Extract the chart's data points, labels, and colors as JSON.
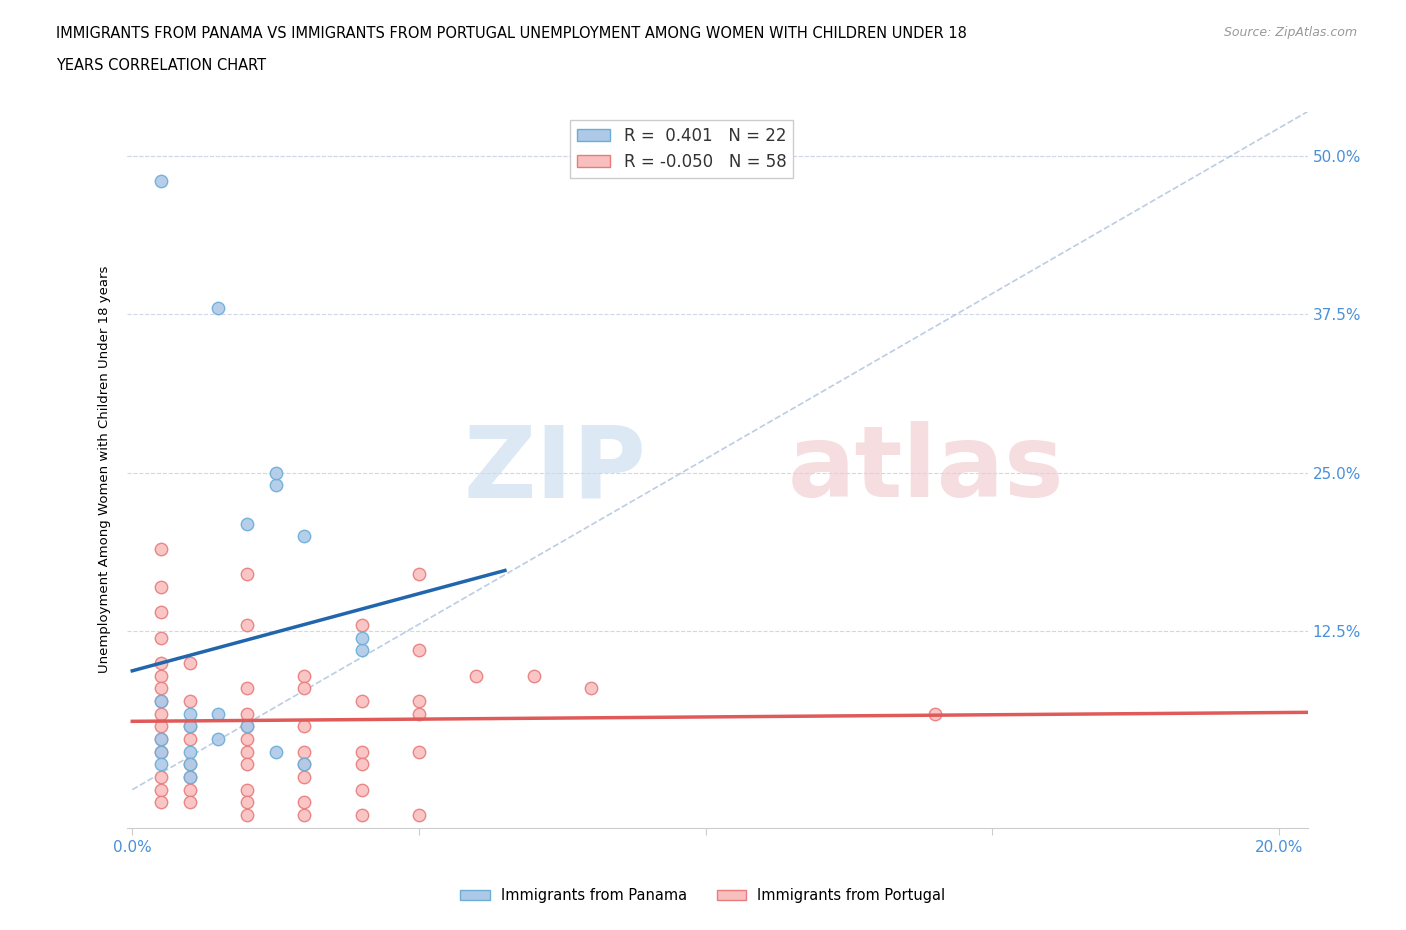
{
  "title_line1": "IMMIGRANTS FROM PANAMA VS IMMIGRANTS FROM PORTUGAL UNEMPLOYMENT AMONG WOMEN WITH CHILDREN UNDER 18",
  "title_line2": "YEARS CORRELATION CHART",
  "source": "Source: ZipAtlas.com",
  "ylabel": "Unemployment Among Women with Children Under 18 years",
  "xlim": [
    -0.001,
    0.205
  ],
  "ylim": [
    -0.03,
    0.535
  ],
  "xticks": [
    0.0,
    0.05,
    0.1,
    0.15,
    0.2
  ],
  "xticklabels": [
    "0.0%",
    "",
    "",
    "",
    "20.0%"
  ],
  "ytick_right_vals": [
    0.0,
    0.125,
    0.25,
    0.375,
    0.5
  ],
  "ytick_right_labels": [
    "",
    "12.5%",
    "25.0%",
    "37.5%",
    "50.0%"
  ],
  "panama_color": "#aec9e8",
  "panama_edge_color": "#6aaed6",
  "portugal_color": "#f9bfbf",
  "portugal_edge_color": "#e87c7c",
  "panama_line_color": "#2166ac",
  "portugal_line_color": "#e05a5a",
  "dash_line_color": "#a0b8d8",
  "grid_color": "#d0d8e8",
  "watermark_zip_color": "#dde8f5",
  "watermark_atlas_color": "#f5dde0",
  "panama_R": 0.401,
  "panama_N": 22,
  "portugal_R": -0.05,
  "portugal_N": 58,
  "panama_scatter": [
    [
      0.005,
      0.48
    ],
    [
      0.015,
      0.38
    ],
    [
      0.02,
      0.21
    ],
    [
      0.025,
      0.24
    ],
    [
      0.025,
      0.25
    ],
    [
      0.03,
      0.2
    ],
    [
      0.04,
      0.11
    ],
    [
      0.04,
      0.12
    ],
    [
      0.005,
      0.07
    ],
    [
      0.01,
      0.06
    ],
    [
      0.01,
      0.05
    ],
    [
      0.005,
      0.04
    ],
    [
      0.005,
      0.03
    ],
    [
      0.005,
      0.02
    ],
    [
      0.01,
      0.03
    ],
    [
      0.01,
      0.02
    ],
    [
      0.01,
      0.01
    ],
    [
      0.015,
      0.06
    ],
    [
      0.015,
      0.04
    ],
    [
      0.02,
      0.05
    ],
    [
      0.025,
      0.03
    ],
    [
      0.03,
      0.02
    ]
  ],
  "portugal_scatter": [
    [
      0.005,
      0.19
    ],
    [
      0.005,
      0.16
    ],
    [
      0.005,
      0.14
    ],
    [
      0.005,
      0.12
    ],
    [
      0.005,
      0.1
    ],
    [
      0.005,
      0.09
    ],
    [
      0.005,
      0.08
    ],
    [
      0.005,
      0.07
    ],
    [
      0.005,
      0.06
    ],
    [
      0.005,
      0.05
    ],
    [
      0.005,
      0.04
    ],
    [
      0.005,
      0.03
    ],
    [
      0.005,
      0.01
    ],
    [
      0.005,
      0.0
    ],
    [
      0.005,
      -0.01
    ],
    [
      0.01,
      0.1
    ],
    [
      0.01,
      0.07
    ],
    [
      0.01,
      0.05
    ],
    [
      0.01,
      0.04
    ],
    [
      0.01,
      0.02
    ],
    [
      0.01,
      0.01
    ],
    [
      0.01,
      0.0
    ],
    [
      0.01,
      -0.01
    ],
    [
      0.02,
      0.17
    ],
    [
      0.02,
      0.13
    ],
    [
      0.02,
      0.08
    ],
    [
      0.02,
      0.06
    ],
    [
      0.02,
      0.05
    ],
    [
      0.02,
      0.04
    ],
    [
      0.02,
      0.03
    ],
    [
      0.02,
      0.02
    ],
    [
      0.02,
      0.0
    ],
    [
      0.02,
      -0.01
    ],
    [
      0.02,
      -0.02
    ],
    [
      0.03,
      0.09
    ],
    [
      0.03,
      0.08
    ],
    [
      0.03,
      0.05
    ],
    [
      0.03,
      0.03
    ],
    [
      0.03,
      0.02
    ],
    [
      0.03,
      0.01
    ],
    [
      0.03,
      -0.01
    ],
    [
      0.03,
      -0.02
    ],
    [
      0.04,
      0.13
    ],
    [
      0.04,
      0.07
    ],
    [
      0.04,
      0.03
    ],
    [
      0.04,
      0.02
    ],
    [
      0.04,
      0.0
    ],
    [
      0.04,
      -0.02
    ],
    [
      0.05,
      0.17
    ],
    [
      0.05,
      0.11
    ],
    [
      0.05,
      0.07
    ],
    [
      0.05,
      0.06
    ],
    [
      0.05,
      0.03
    ],
    [
      0.05,
      -0.02
    ],
    [
      0.06,
      0.09
    ],
    [
      0.07,
      0.09
    ],
    [
      0.08,
      0.08
    ],
    [
      0.14,
      0.06
    ]
  ]
}
